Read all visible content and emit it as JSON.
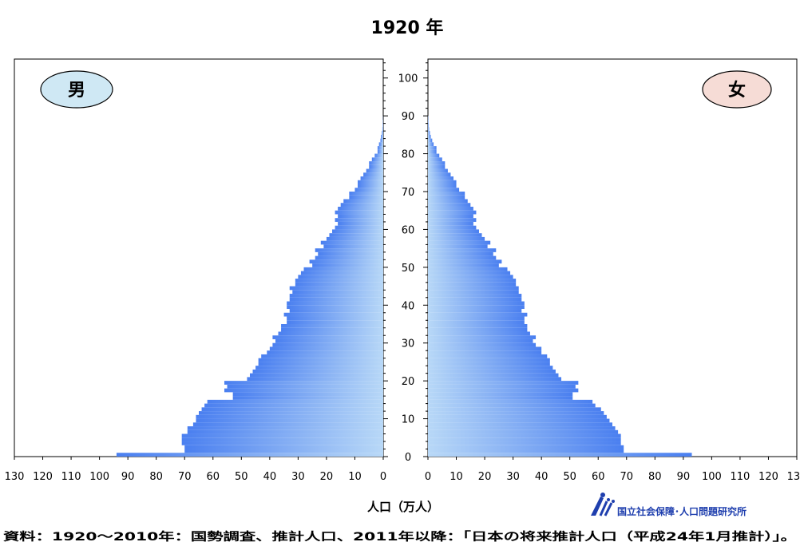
{
  "chart_data": {
    "type": "bar",
    "title": "1920 年",
    "panels": [
      {
        "name": "男",
        "color": "#cfe8f4"
      },
      {
        "name": "女",
        "color": "#f6dcd6"
      }
    ],
    "bar_gradient": [
      "#4a7ff0",
      "#b8d8f7"
    ],
    "xlabel": "人口（万人）",
    "xlim": [
      0,
      130
    ],
    "x_ticks": [
      0,
      10,
      20,
      30,
      40,
      50,
      60,
      70,
      80,
      90,
      100,
      110,
      120,
      130
    ],
    "ylim": [
      0,
      105
    ],
    "y_ticks": [
      0,
      10,
      20,
      30,
      40,
      50,
      60,
      70,
      80,
      90,
      100
    ],
    "ages_start": 0,
    "male": [
      94,
      70,
      70,
      71,
      71,
      71,
      69,
      69,
      67,
      66,
      66,
      65,
      64,
      63,
      62,
      53,
      53,
      56,
      55,
      56,
      48,
      47,
      46,
      45,
      44,
      44,
      43,
      41,
      40,
      39,
      38,
      39,
      37,
      36,
      36,
      34,
      34,
      35,
      33,
      34,
      34,
      33,
      33,
      32,
      33,
      31,
      31,
      30,
      29,
      28,
      25,
      26,
      24,
      23,
      24,
      21,
      22,
      20,
      19,
      18,
      17,
      16,
      17,
      16,
      17,
      16,
      15,
      14,
      12,
      12,
      10,
      9,
      9,
      8,
      7,
      6,
      5,
      5,
      4,
      3,
      2,
      2,
      1.5,
      1,
      0.8,
      0.5,
      0.3,
      0.2,
      0.1,
      0.05
    ],
    "female": [
      93,
      69,
      69,
      68,
      68,
      68,
      67,
      66,
      65,
      64,
      63,
      62,
      61,
      59,
      58,
      51,
      51,
      53,
      52,
      53,
      47,
      46,
      45,
      44,
      43,
      43,
      42,
      40,
      40,
      38,
      37,
      38,
      36,
      35,
      35,
      34,
      34,
      35,
      33,
      34,
      34,
      33,
      33,
      32,
      32,
      31,
      31,
      30,
      29,
      28,
      25,
      26,
      24,
      23,
      24,
      21,
      22,
      20,
      19,
      18,
      17,
      16,
      17,
      16,
      17,
      16,
      15,
      14,
      13,
      13,
      11,
      10,
      10,
      9,
      8,
      7,
      6,
      6,
      5,
      4,
      3,
      3,
      2,
      1.5,
      1,
      0.7,
      0.4,
      0.3,
      0.2,
      0.1
    ],
    "source": "資料：1920～2010年：国勢調査、推計人口、2011年以降：「日本の将来推計人口（平成24年1月推計）」。",
    "logo_text": "国立社会保障･人口問題研究所"
  }
}
